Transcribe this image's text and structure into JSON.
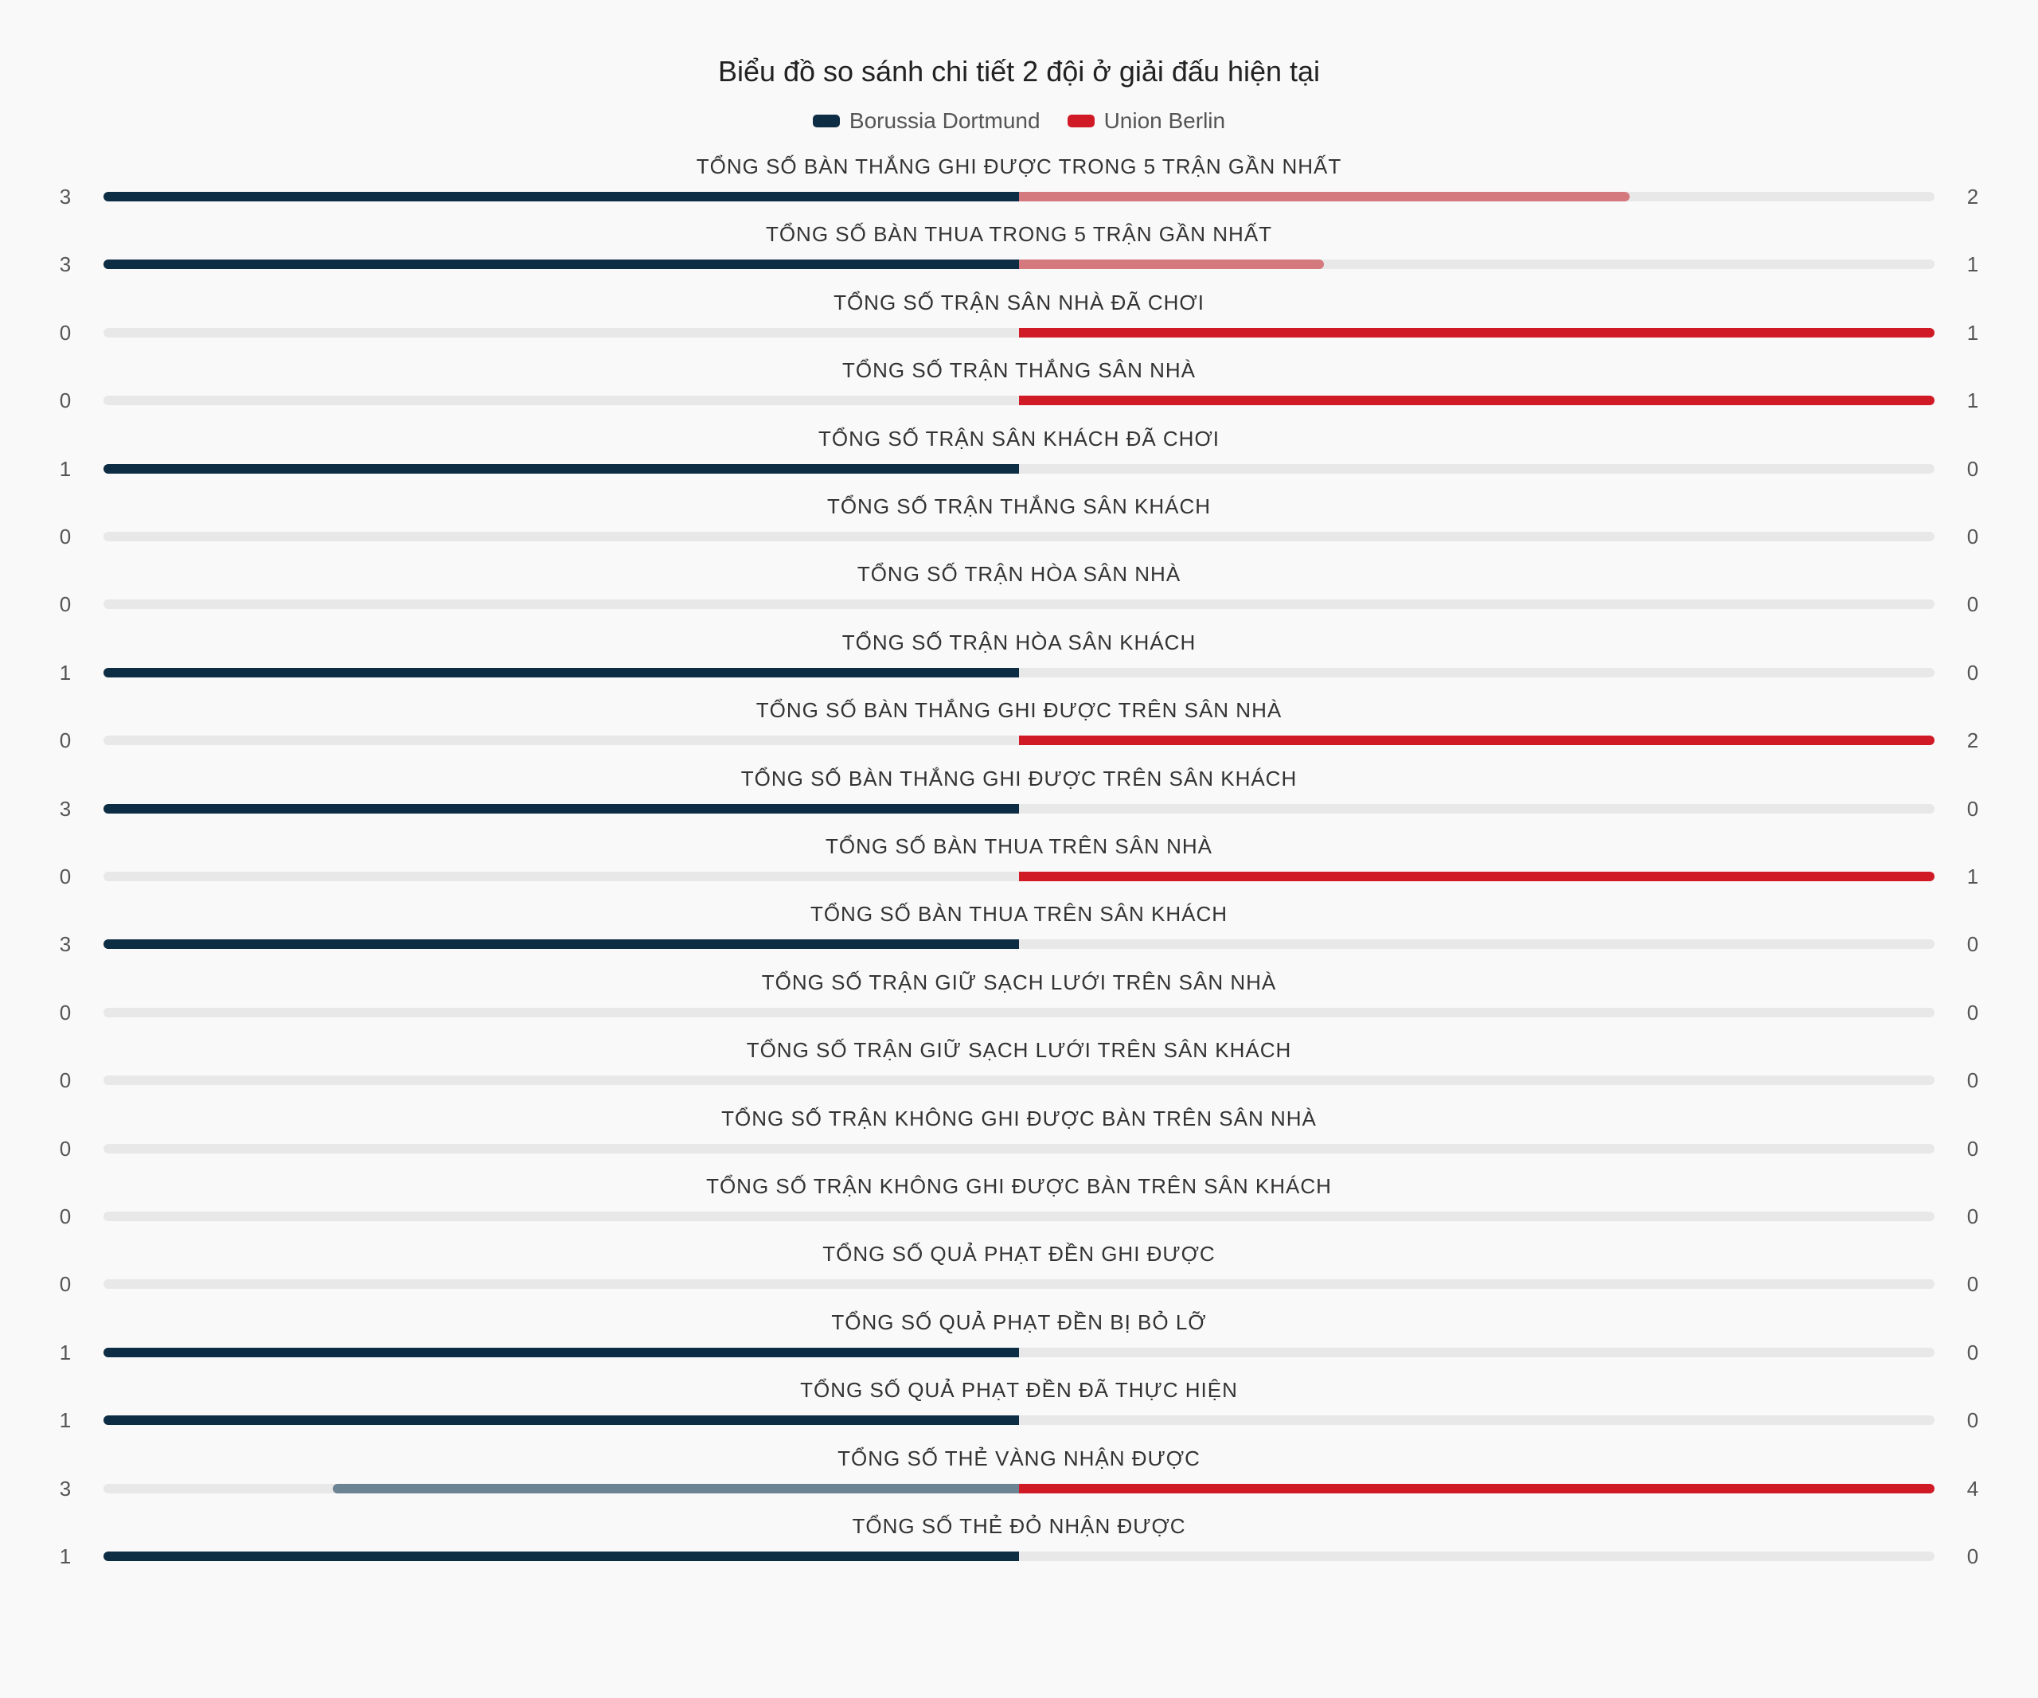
{
  "chart_data": {
    "type": "bar",
    "title": "Biểu đồ so sánh chi tiết 2 đội ở giải đấu hiện tại",
    "legend_placement": "top-center",
    "series": [
      {
        "name": "Borussia Dortmund",
        "color": "#0d2d45"
      },
      {
        "name": "Union Berlin",
        "color": "#d01b27"
      }
    ],
    "rows": [
      {
        "label": "TỔNG SỐ BÀN THẮNG GHI ĐƯỢC TRONG 5 TRẬN GẦN NHẤT",
        "left": 3,
        "right": 2
      },
      {
        "label": "TỔNG SỐ BÀN THUA TRONG 5 TRẬN GẦN NHẤT",
        "left": 3,
        "right": 1
      },
      {
        "label": "TỔNG SỐ TRẬN SÂN NHÀ ĐÃ CHƠI",
        "left": 0,
        "right": 1
      },
      {
        "label": "TỔNG SỐ TRẬN THẮNG SÂN NHÀ",
        "left": 0,
        "right": 1
      },
      {
        "label": "TỔNG SỐ TRẬN SÂN KHÁCH ĐÃ CHƠI",
        "left": 1,
        "right": 0
      },
      {
        "label": "TỔNG SỐ TRẬN THẮNG SÂN KHÁCH",
        "left": 0,
        "right": 0
      },
      {
        "label": "TỔNG SỐ TRẬN HÒA SÂN NHÀ",
        "left": 0,
        "right": 0
      },
      {
        "label": "TỔNG SỐ TRẬN HÒA SÂN KHÁCH",
        "left": 1,
        "right": 0
      },
      {
        "label": "TỔNG SỐ BÀN THẮNG GHI ĐƯỢC TRÊN SÂN NHÀ",
        "left": 0,
        "right": 2
      },
      {
        "label": "TỔNG SỐ BÀN THẮNG GHI ĐƯỢC TRÊN SÂN KHÁCH",
        "left": 3,
        "right": 0
      },
      {
        "label": "TỔNG SỐ BÀN THUA TRÊN SÂN NHÀ",
        "left": 0,
        "right": 1
      },
      {
        "label": "TỔNG SỐ BÀN THUA TRÊN SÂN KHÁCH",
        "left": 3,
        "right": 0
      },
      {
        "label": "TỔNG SỐ TRẬN GIỮ SẠCH LƯỚI TRÊN SÂN NHÀ",
        "left": 0,
        "right": 0
      },
      {
        "label": "TỔNG SỐ TRẬN GIỮ SẠCH LƯỚI TRÊN SÂN KHÁCH",
        "left": 0,
        "right": 0
      },
      {
        "label": "TỔNG SỐ TRẬN KHÔNG GHI ĐƯỢC BÀN TRÊN SÂN NHÀ",
        "left": 0,
        "right": 0
      },
      {
        "label": "TỔNG SỐ TRẬN KHÔNG GHI ĐƯỢC BÀN TRÊN SÂN KHÁCH",
        "left": 0,
        "right": 0
      },
      {
        "label": "TỔNG SỐ QUẢ PHẠT ĐỀN GHI ĐƯỢC",
        "left": 0,
        "right": 0
      },
      {
        "label": "TỔNG SỐ QUẢ PHẠT ĐỀN BỊ BỎ LỠ",
        "left": 1,
        "right": 0
      },
      {
        "label": "TỔNG SỐ QUẢ PHẠT ĐỀN ĐÃ THỰC HIỆN",
        "left": 1,
        "right": 0
      },
      {
        "label": "TỔNG SỐ THẺ VÀNG NHẬN ĐƯỢC",
        "left": 3,
        "right": 4
      },
      {
        "label": "TỔNG SỐ THẺ ĐỎ NHẬN ĐƯỢC",
        "left": 1,
        "right": 0
      }
    ]
  }
}
